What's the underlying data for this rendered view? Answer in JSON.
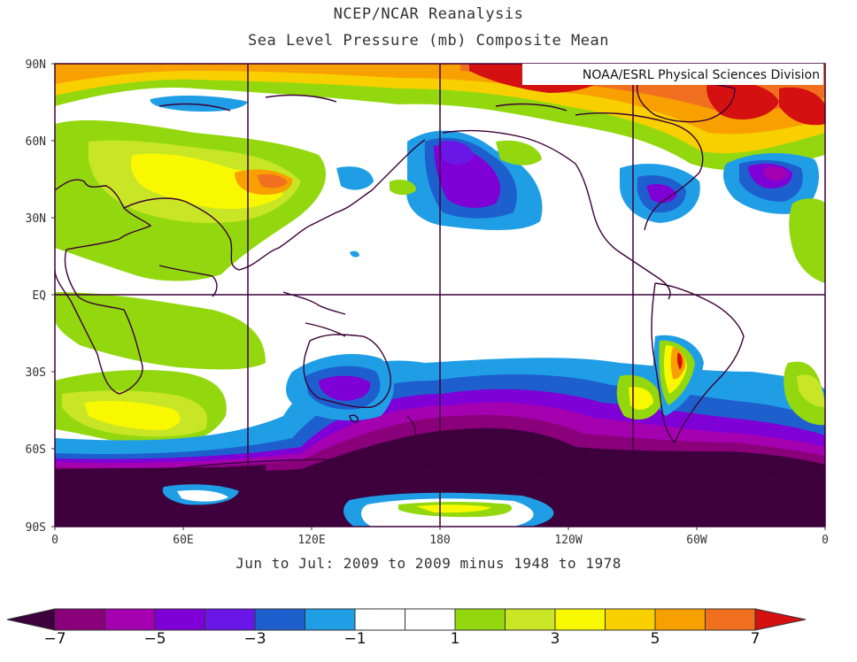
{
  "title": {
    "line1": "NCEP/NCAR Reanalysis",
    "line2": "Sea Level Pressure (mb) Composite Mean"
  },
  "credit": "NOAA/ESRL Physical Sciences Division",
  "subtitle": "Jun to Jul: 2009 to 2009 minus 1948 to 1978",
  "axes": {
    "lat_labels": [
      "90N",
      "60N",
      "30N",
      "EQ",
      "30S",
      "60S",
      "90S"
    ],
    "lon_labels": [
      "0",
      "60E",
      "120E",
      "180",
      "120W",
      "60W",
      "0"
    ]
  },
  "colorbar": {
    "labels": [
      "-7",
      "-5",
      "-3",
      "-1",
      "1",
      "3",
      "5",
      "7"
    ],
    "colors": [
      "#3d003d",
      "#8a007a",
      "#a400b0",
      "#7f00d6",
      "#6a16e6",
      "#1e5fce",
      "#1f9ee6",
      "#ffffff",
      "#ffffff",
      "#93d80e",
      "#c8e626",
      "#f8f800",
      "#f8d000",
      "#f8a000",
      "#f07020",
      "#d41010"
    ]
  },
  "chart_data": {
    "type": "heatmap",
    "variable": "Sea Level Pressure (mb) Composite Mean anomaly",
    "period": "Jun to Jul: 2009 to 2009 minus 1948 to 1978",
    "color_levels": [
      -7,
      -6,
      -5,
      -4,
      -3,
      -2,
      -1,
      0,
      1,
      2,
      3,
      4,
      5,
      6,
      7
    ],
    "lon_range": [
      0,
      360
    ],
    "lat_range": [
      -90,
      90
    ]
  }
}
